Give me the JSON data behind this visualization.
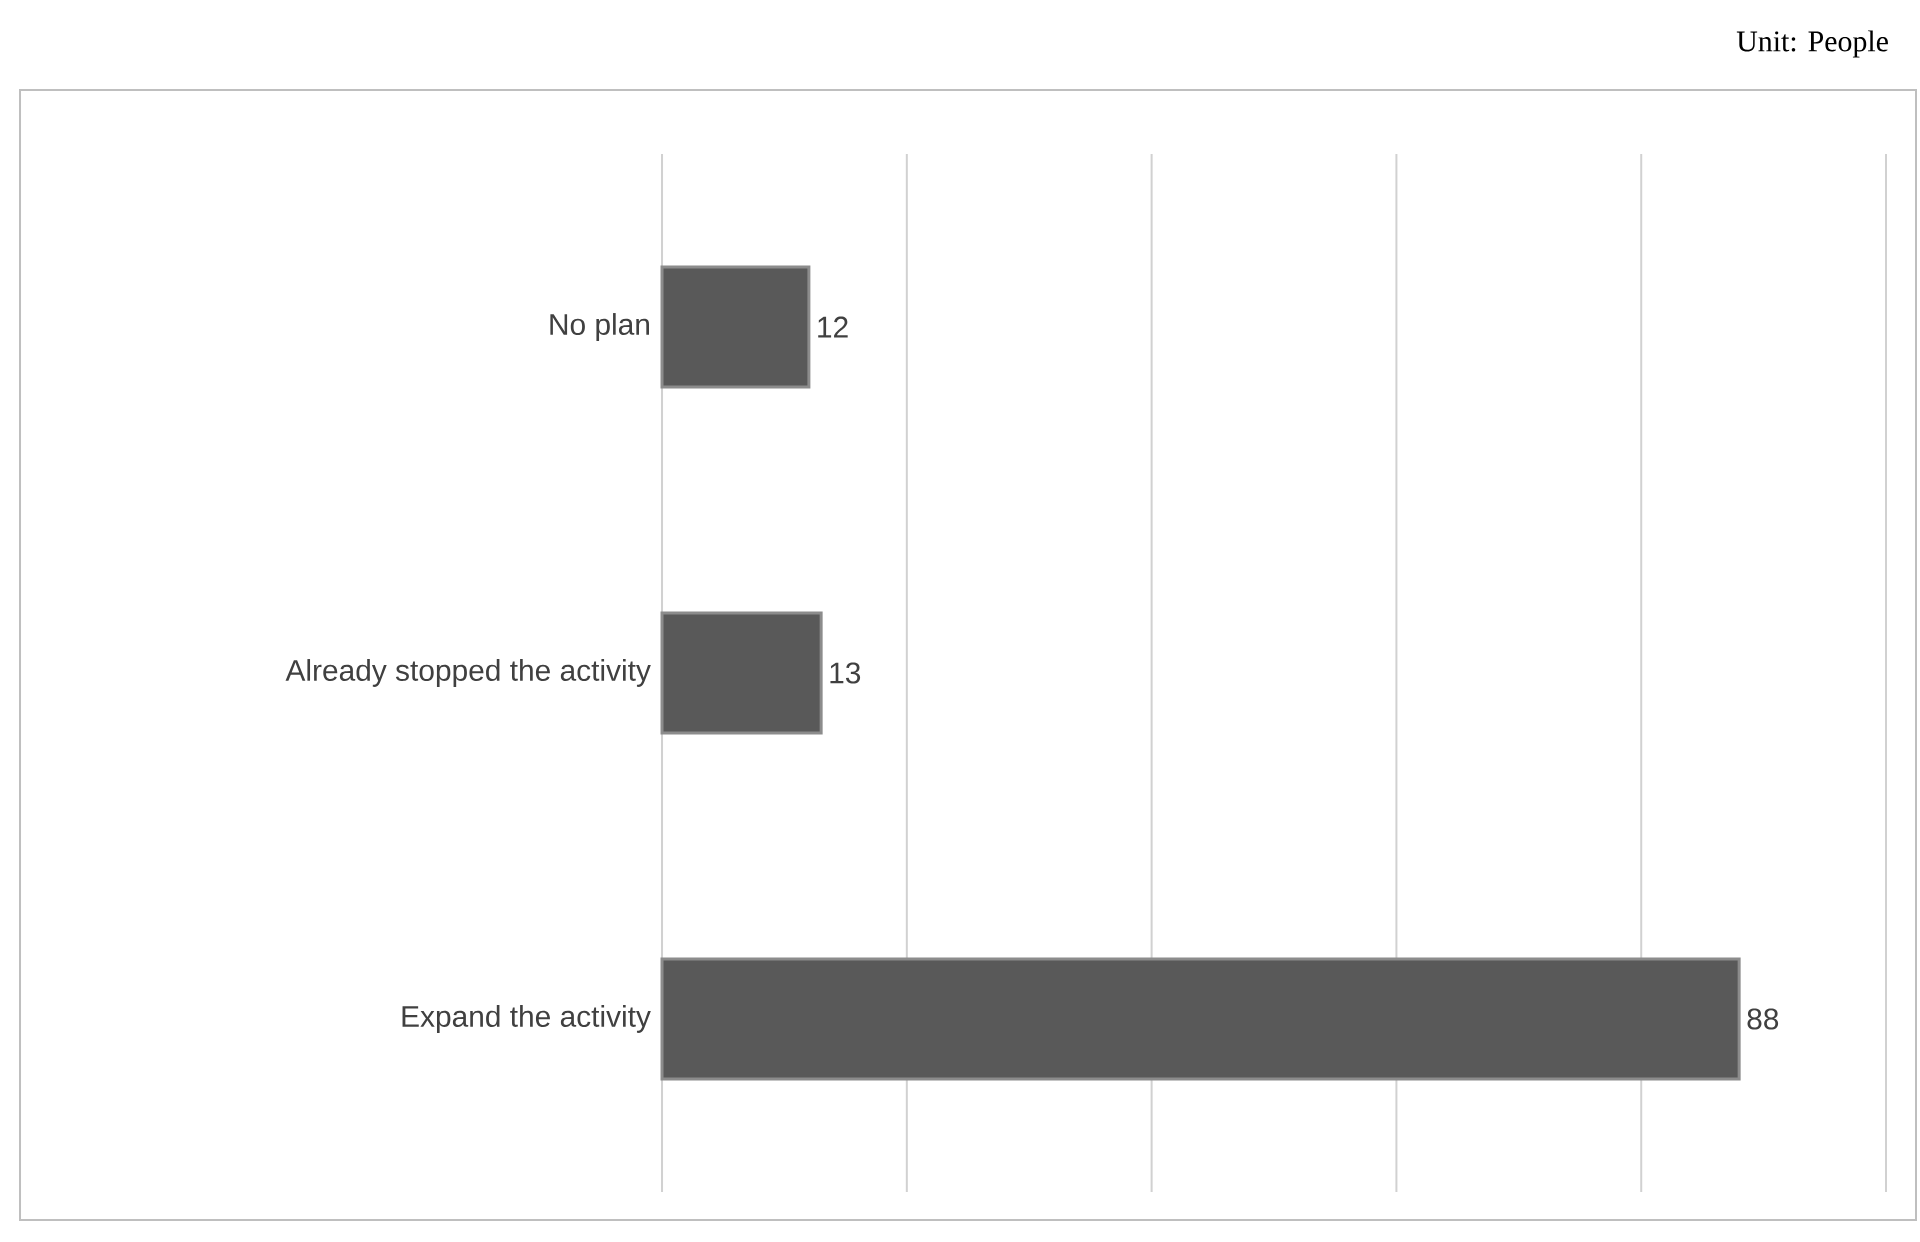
{
  "chart_data": {
    "type": "bar",
    "orientation": "horizontal",
    "categories": [
      "No plan",
      "Already stopped the activity",
      "Expand the activity"
    ],
    "values": [
      12,
      13,
      88
    ],
    "color": "#595959",
    "data_labels": true,
    "xlim": [
      0,
      100
    ],
    "xticks": [
      {
        "value": 0,
        "label": null
      },
      {
        "value": 20,
        "label": null
      },
      {
        "value": 40,
        "label": null
      },
      {
        "value": 60,
        "label": null
      },
      {
        "value": 80,
        "label": null
      },
      {
        "value": 100,
        "label": null
      }
    ],
    "grid": "x",
    "tick_labels": "y",
    "annotations": [
      "Unit: People"
    ]
  }
}
